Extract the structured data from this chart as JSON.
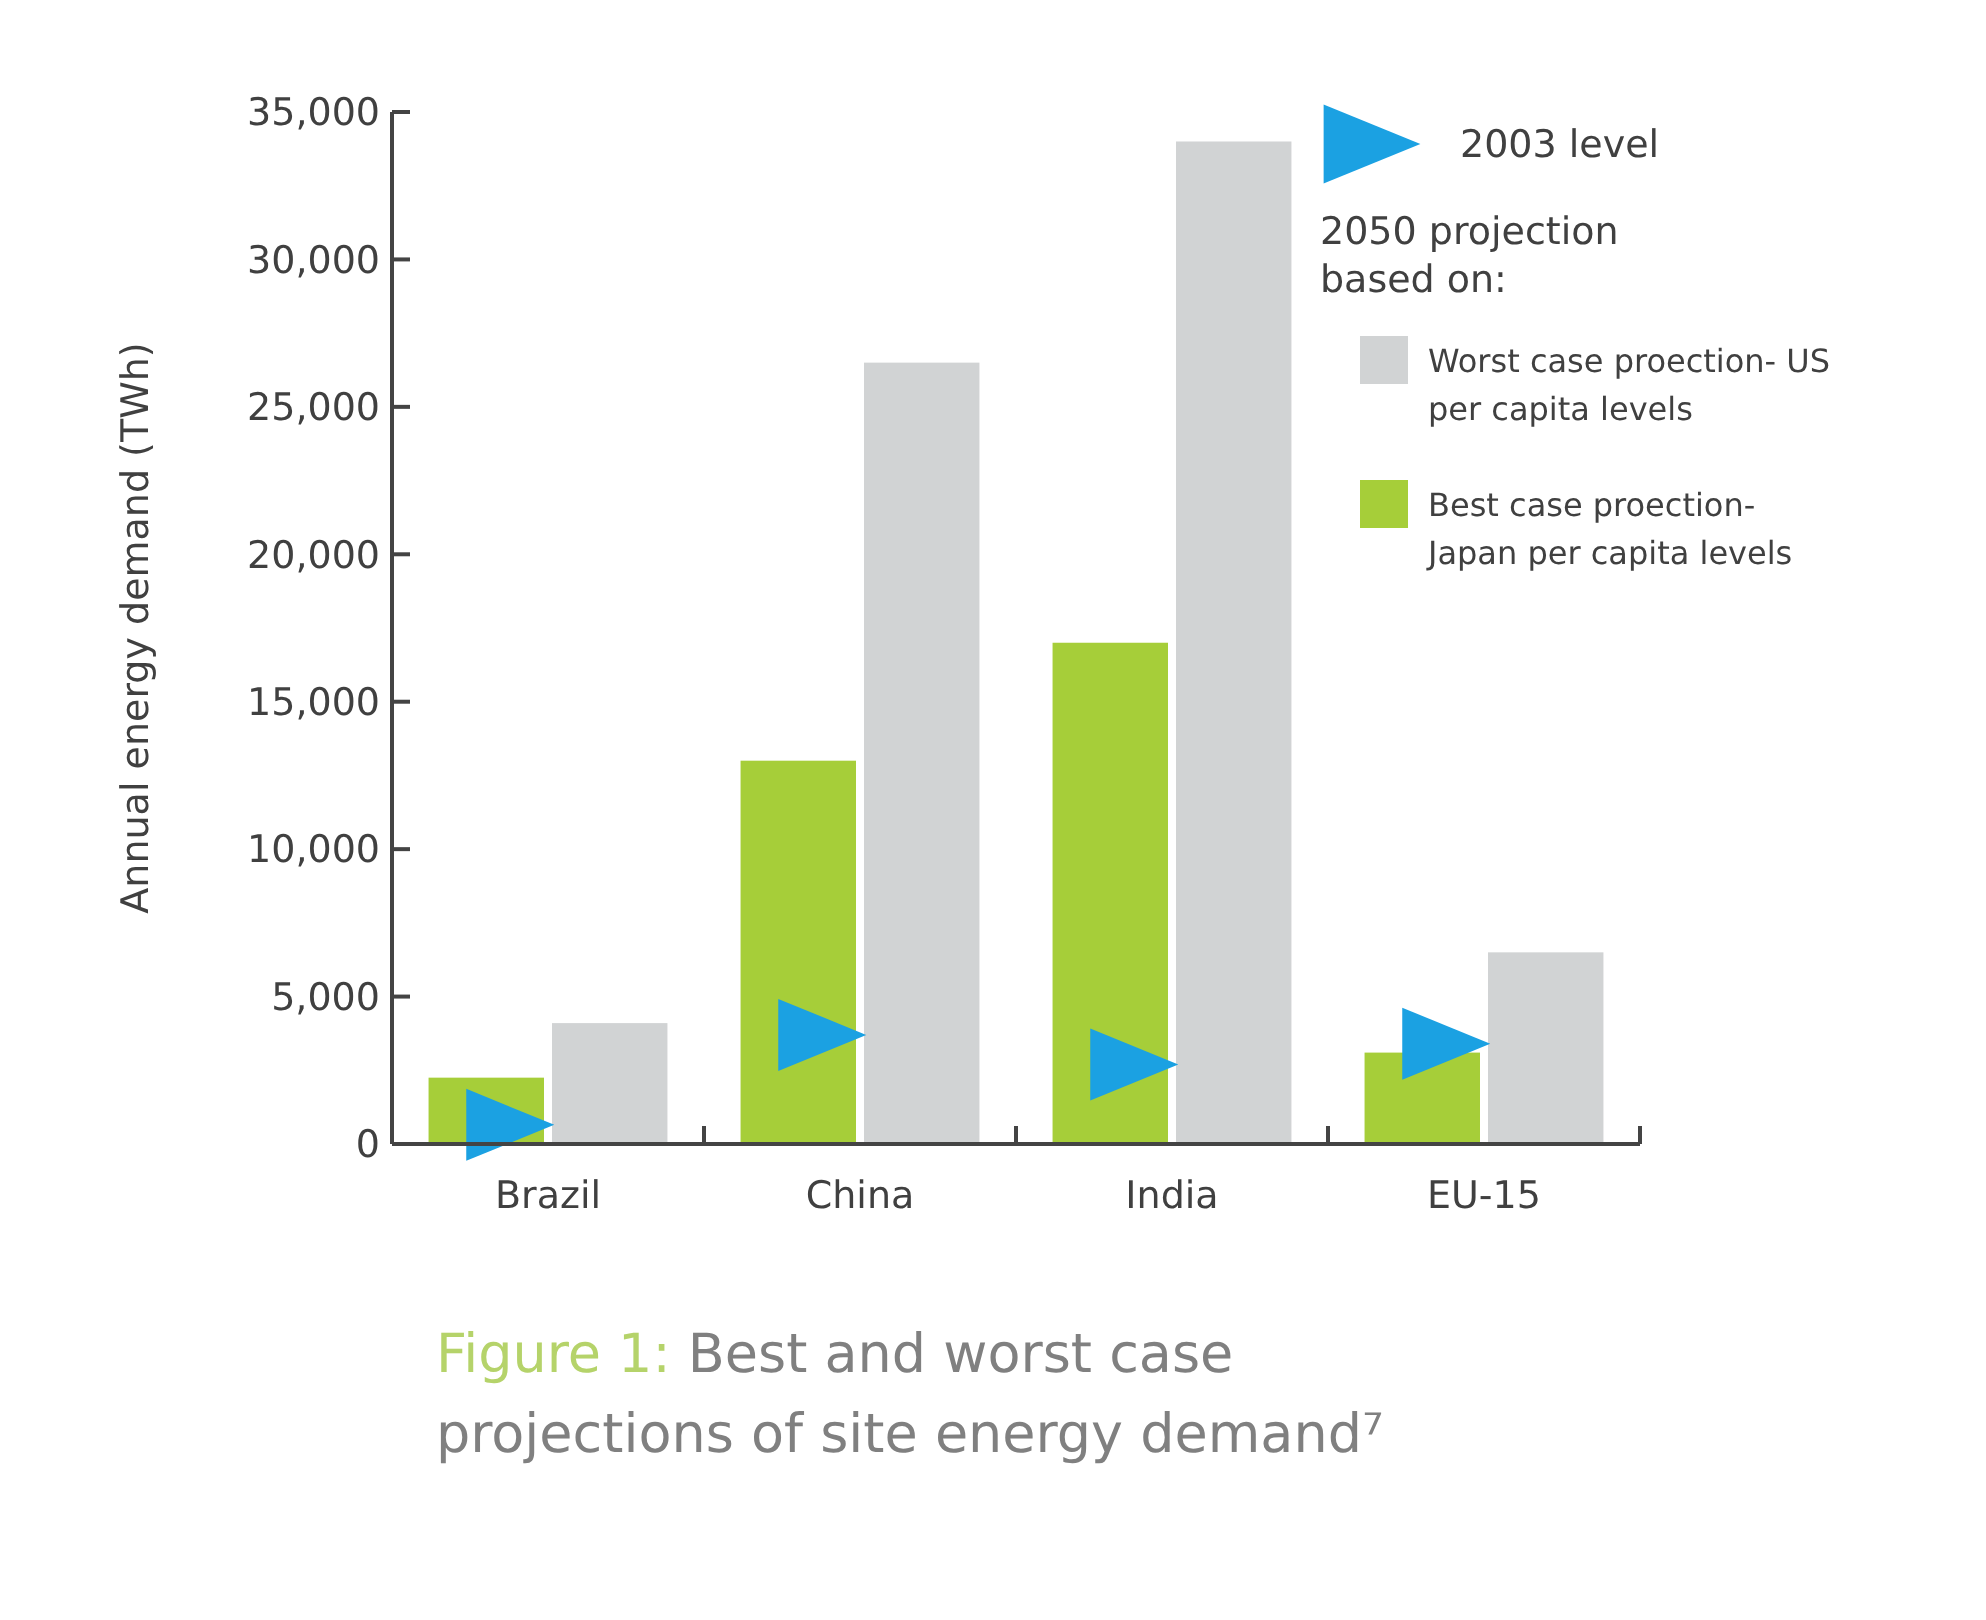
{
  "chart_data": {
    "type": "bar",
    "categories": [
      "Brazil",
      "China",
      "India",
      "EU-15"
    ],
    "ylabel": "Annual energy demand (TWh)",
    "ylim": [
      0,
      35000
    ],
    "yticks": [
      {
        "value": 0,
        "label": "0"
      },
      {
        "value": 5000,
        "label": "5,000"
      },
      {
        "value": 10000,
        "label": "10,000"
      },
      {
        "value": 15000,
        "label": "15,000"
      },
      {
        "value": 20000,
        "label": "20,000"
      },
      {
        "value": 25000,
        "label": "25,000"
      },
      {
        "value": 30000,
        "label": "30,000"
      },
      {
        "value": 35000,
        "label": "35,000"
      }
    ],
    "legend": "top right",
    "legend_title": "2050 projection based on:",
    "series": [
      {
        "name": "Best case proection- Japan per capita levels",
        "color": "#a6ce39",
        "values": [
          2250,
          13000,
          17000,
          3100
        ]
      },
      {
        "name": "Worst case proection- US per capita levels",
        "color": "#d1d3d4",
        "values": [
          4100,
          26500,
          34000,
          6500
        ]
      },
      {
        "type": "scatter",
        "name": "2003 level",
        "color": "#1ba1e2",
        "marker": "triangle",
        "x": [
          "Brazil",
          "China",
          "India",
          "EU-15"
        ],
        "values": [
          650,
          3700,
          2700,
          3400
        ]
      }
    ],
    "annotations": [
      "Figure 1:",
      "Best and worst case projections of site energy demand⁷"
    ]
  }
}
